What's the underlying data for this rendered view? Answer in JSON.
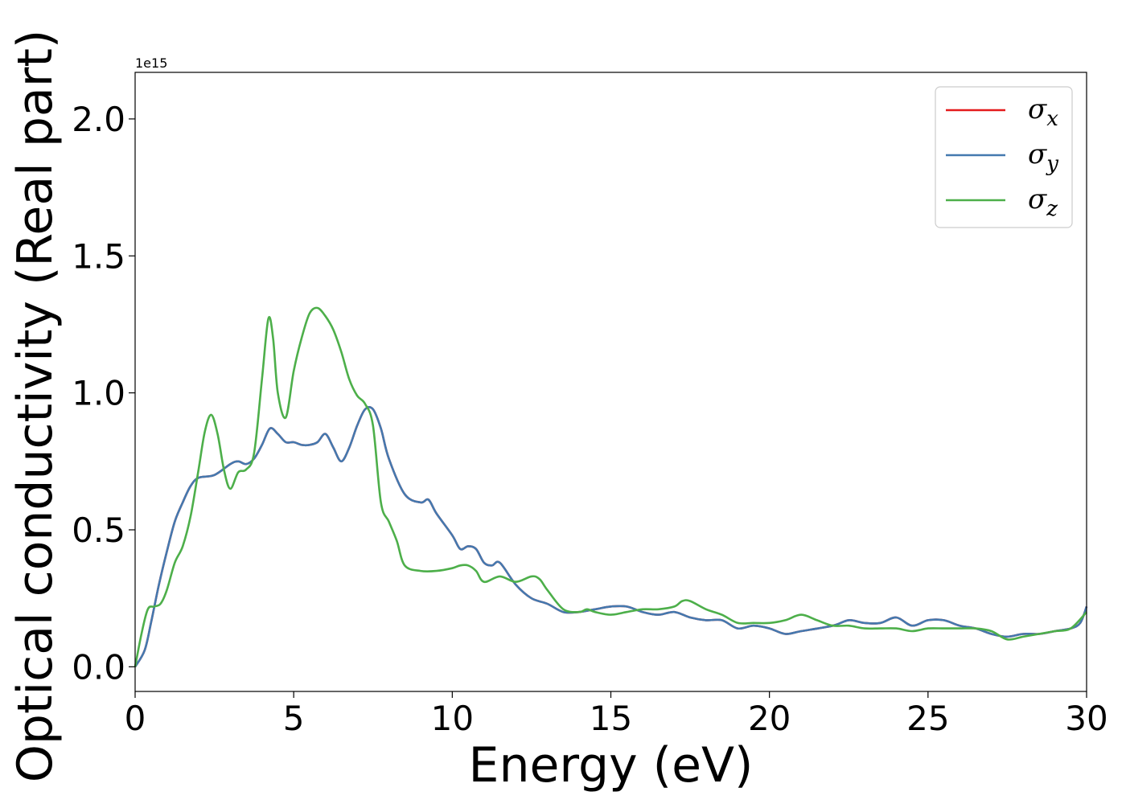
{
  "chart_data": {
    "type": "line",
    "title": "",
    "xlabel": "Energy (eV)",
    "ylabel": "Optical conductivity (Real part)",
    "y_offset_text": "1e15",
    "xlim": [
      0,
      30
    ],
    "ylim": [
      -0.09,
      2.17
    ],
    "x_ticks": [
      0,
      5,
      10,
      15,
      20,
      25,
      30
    ],
    "x_tick_labels": [
      "0",
      "5",
      "10",
      "15",
      "20",
      "25",
      "30"
    ],
    "y_ticks": [
      0.0,
      0.5,
      1.0,
      1.5,
      2.0
    ],
    "y_tick_labels": [
      "0.0",
      "0.5",
      "1.0",
      "1.5",
      "2.0"
    ],
    "grid": false,
    "legend_position": "top-right",
    "series": [
      {
        "name": "σx",
        "symbol": "σ",
        "subscript": "x",
        "color": "#e41a1c",
        "x": [
          0,
          0.3,
          0.5,
          0.75,
          1.0,
          1.25,
          1.5,
          1.75,
          2.0,
          2.5,
          3.0,
          3.25,
          3.5,
          3.75,
          4.0,
          4.25,
          4.5,
          4.75,
          5.0,
          5.25,
          5.5,
          5.75,
          6.0,
          6.25,
          6.5,
          6.75,
          7.0,
          7.25,
          7.5,
          7.75,
          8.0,
          8.5,
          9.0,
          9.25,
          9.5,
          10.0,
          10.25,
          10.5,
          10.75,
          11.0,
          11.25,
          11.5,
          12.0,
          12.5,
          13.0,
          13.5,
          14.0,
          14.5,
          15.0,
          15.5,
          16.0,
          16.5,
          17.0,
          17.5,
          18.0,
          18.5,
          19.0,
          19.5,
          20.0,
          20.5,
          21.0,
          22.0,
          22.5,
          23.0,
          23.5,
          24.0,
          24.5,
          25.0,
          25.5,
          26.0,
          26.5,
          27.0,
          27.5,
          28.0,
          28.5,
          29.0,
          29.5,
          29.8,
          30.0
        ],
        "y": [
          0.0,
          0.06,
          0.16,
          0.3,
          0.42,
          0.53,
          0.6,
          0.66,
          0.69,
          0.7,
          0.74,
          0.75,
          0.74,
          0.76,
          0.81,
          0.87,
          0.85,
          0.82,
          0.82,
          0.81,
          0.81,
          0.82,
          0.85,
          0.8,
          0.75,
          0.8,
          0.88,
          0.94,
          0.94,
          0.87,
          0.76,
          0.63,
          0.6,
          0.61,
          0.56,
          0.48,
          0.43,
          0.44,
          0.43,
          0.38,
          0.37,
          0.38,
          0.3,
          0.25,
          0.23,
          0.2,
          0.2,
          0.21,
          0.22,
          0.22,
          0.2,
          0.19,
          0.2,
          0.18,
          0.17,
          0.17,
          0.14,
          0.15,
          0.14,
          0.12,
          0.13,
          0.15,
          0.17,
          0.16,
          0.16,
          0.18,
          0.15,
          0.17,
          0.17,
          0.15,
          0.14,
          0.12,
          0.11,
          0.12,
          0.12,
          0.13,
          0.14,
          0.16,
          0.22
        ]
      },
      {
        "name": "σy",
        "symbol": "σ",
        "subscript": "y",
        "color": "#4479af",
        "x": [
          0,
          0.3,
          0.5,
          0.75,
          1.0,
          1.25,
          1.5,
          1.75,
          2.0,
          2.5,
          3.0,
          3.25,
          3.5,
          3.75,
          4.0,
          4.25,
          4.5,
          4.75,
          5.0,
          5.25,
          5.5,
          5.75,
          6.0,
          6.25,
          6.5,
          6.75,
          7.0,
          7.25,
          7.5,
          7.75,
          8.0,
          8.5,
          9.0,
          9.25,
          9.5,
          10.0,
          10.25,
          10.5,
          10.75,
          11.0,
          11.25,
          11.5,
          12.0,
          12.5,
          13.0,
          13.5,
          14.0,
          14.5,
          15.0,
          15.5,
          16.0,
          16.5,
          17.0,
          17.5,
          18.0,
          18.5,
          19.0,
          19.5,
          20.0,
          20.5,
          21.0,
          22.0,
          22.5,
          23.0,
          23.5,
          24.0,
          24.5,
          25.0,
          25.5,
          26.0,
          26.5,
          27.0,
          27.5,
          28.0,
          28.5,
          29.0,
          29.5,
          29.8,
          30.0
        ],
        "y": [
          0.0,
          0.06,
          0.16,
          0.3,
          0.42,
          0.53,
          0.6,
          0.66,
          0.69,
          0.7,
          0.74,
          0.75,
          0.74,
          0.76,
          0.81,
          0.87,
          0.85,
          0.82,
          0.82,
          0.81,
          0.81,
          0.82,
          0.85,
          0.8,
          0.75,
          0.8,
          0.88,
          0.94,
          0.94,
          0.87,
          0.76,
          0.63,
          0.6,
          0.61,
          0.56,
          0.48,
          0.43,
          0.44,
          0.43,
          0.38,
          0.37,
          0.38,
          0.3,
          0.25,
          0.23,
          0.2,
          0.2,
          0.21,
          0.22,
          0.22,
          0.2,
          0.19,
          0.2,
          0.18,
          0.17,
          0.17,
          0.14,
          0.15,
          0.14,
          0.12,
          0.13,
          0.15,
          0.17,
          0.16,
          0.16,
          0.18,
          0.15,
          0.17,
          0.17,
          0.15,
          0.14,
          0.12,
          0.11,
          0.12,
          0.12,
          0.13,
          0.14,
          0.16,
          0.22
        ]
      },
      {
        "name": "σz",
        "symbol": "σ",
        "subscript": "z",
        "color": "#4daf4a",
        "x": [
          0,
          0.2,
          0.4,
          0.6,
          0.8,
          1.0,
          1.25,
          1.5,
          1.75,
          2.0,
          2.2,
          2.4,
          2.6,
          2.8,
          3.0,
          3.25,
          3.5,
          3.75,
          4.0,
          4.2,
          4.35,
          4.5,
          4.75,
          5.0,
          5.25,
          5.5,
          5.75,
          6.0,
          6.25,
          6.5,
          6.75,
          7.0,
          7.25,
          7.5,
          7.75,
          8.0,
          8.25,
          8.5,
          9.0,
          9.5,
          10.0,
          10.25,
          10.5,
          10.75,
          11.0,
          11.5,
          12.0,
          12.5,
          12.75,
          13.0,
          13.5,
          14.0,
          14.25,
          14.5,
          15.0,
          15.5,
          16.0,
          16.5,
          17.0,
          17.25,
          17.5,
          18.0,
          18.5,
          19.0,
          19.5,
          20.0,
          20.5,
          21.0,
          21.5,
          22.0,
          22.5,
          23.0,
          23.5,
          24.0,
          24.5,
          25.0,
          25.5,
          26.0,
          26.5,
          27.0,
          27.5,
          28.0,
          28.5,
          29.0,
          29.5,
          30.0
        ],
        "y": [
          0.0,
          0.12,
          0.21,
          0.22,
          0.23,
          0.28,
          0.38,
          0.44,
          0.55,
          0.72,
          0.86,
          0.92,
          0.85,
          0.72,
          0.65,
          0.71,
          0.72,
          0.78,
          1.05,
          1.27,
          1.2,
          1.0,
          0.91,
          1.08,
          1.2,
          1.29,
          1.31,
          1.28,
          1.23,
          1.15,
          1.05,
          0.99,
          0.96,
          0.88,
          0.6,
          0.53,
          0.46,
          0.37,
          0.35,
          0.35,
          0.36,
          0.37,
          0.37,
          0.35,
          0.31,
          0.33,
          0.31,
          0.33,
          0.32,
          0.28,
          0.21,
          0.2,
          0.21,
          0.2,
          0.19,
          0.2,
          0.21,
          0.21,
          0.22,
          0.24,
          0.24,
          0.21,
          0.19,
          0.16,
          0.16,
          0.16,
          0.17,
          0.19,
          0.17,
          0.15,
          0.15,
          0.14,
          0.14,
          0.14,
          0.13,
          0.14,
          0.14,
          0.14,
          0.14,
          0.13,
          0.1,
          0.11,
          0.12,
          0.13,
          0.14,
          0.2
        ]
      }
    ]
  }
}
